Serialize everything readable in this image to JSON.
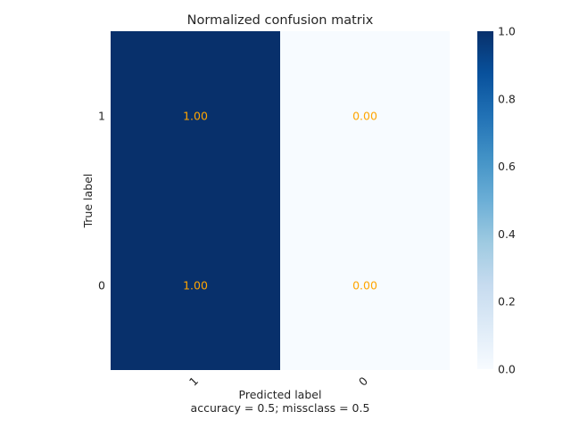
{
  "chart_data": {
    "type": "heatmap",
    "title": "Normalized confusion matrix",
    "xlabel": "Predicted label",
    "ylabel": "True label",
    "footnote": "accuracy = 0.5; missclass = 0.5",
    "x_categories": [
      "1",
      "0"
    ],
    "y_categories": [
      "1",
      "0"
    ],
    "values": [
      [
        1.0,
        0.0
      ],
      [
        1.0,
        0.0
      ]
    ],
    "cell_labels": [
      [
        "1.00",
        "0.00"
      ],
      [
        "1.00",
        "0.00"
      ]
    ],
    "colormap": "Blues",
    "vmin": 0.0,
    "vmax": 1.0,
    "colorbar_ticks": [
      "0.0",
      "0.2",
      "0.4",
      "0.6",
      "0.8",
      "1.0"
    ],
    "grid": false
  },
  "colors": {
    "low": "#f7fbff",
    "high": "#08306b",
    "annotation": "#ffa500",
    "text": "#262626"
  }
}
